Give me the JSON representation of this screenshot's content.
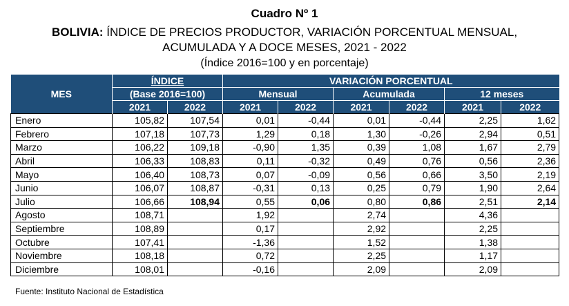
{
  "header": {
    "title": "Cuadro Nº 1",
    "subtitle_lead": "BOLIVIA:",
    "subtitle_line1": " ÍNDICE DE PRECIOS PRODUCTOR, VARIACIÓN PORCENTUAL MENSUAL,",
    "subtitle_line2": "ACUMULADA Y A DOCE MESES, 2021 - 2022",
    "base_note": "(Índice 2016=100 y en porcentaje)"
  },
  "table": {
    "col_mes": "MES",
    "group_indice": "ÍNDICE",
    "indice_base": "(Base 2016=100)",
    "group_variacion": "VARIACIÓN PORCENTUAL",
    "sub_mensual": "Mensual",
    "sub_acumulada": "Acumulada",
    "sub_doce": "12 meses",
    "years": [
      "2021",
      "2022",
      "2021",
      "2022",
      "2021",
      "2022",
      "2021",
      "2022"
    ],
    "rows": [
      [
        "Enero",
        "105,82",
        "107,54",
        "0,01",
        "-0,44",
        "0,01",
        "-0,44",
        "2,25",
        "1,62"
      ],
      [
        "Febrero",
        "107,18",
        "107,73",
        "1,29",
        "0,18",
        "1,30",
        "-0,26",
        "2,94",
        "0,51"
      ],
      [
        "Marzo",
        "106,22",
        "109,18",
        "-0,90",
        "1,35",
        "0,39",
        "1,08",
        "1,67",
        "2,79"
      ],
      [
        "Abril",
        "106,33",
        "108,83",
        "0,11",
        "-0,32",
        "0,49",
        "0,76",
        "0,56",
        "2,36"
      ],
      [
        "Mayo",
        "106,40",
        "108,73",
        "0,07",
        "-0,09",
        "0,56",
        "0,66",
        "3,50",
        "2,19"
      ],
      [
        "Junio",
        "106,07",
        "108,87",
        "-0,31",
        "0,13",
        "0,25",
        "0,79",
        "1,90",
        "2,64"
      ],
      [
        "Julio",
        "106,66",
        "108,94",
        "0,55",
        "0,06",
        "0,80",
        "0,86",
        "2,51",
        "2,14"
      ],
      [
        "Agosto",
        "108,71",
        "",
        "1,92",
        "",
        "2,74",
        "",
        "4,36",
        ""
      ],
      [
        "Septiembre",
        "108,89",
        "",
        "0,17",
        "",
        "2,92",
        "",
        "2,25",
        ""
      ],
      [
        "Octubre",
        "107,41",
        "",
        "-1,36",
        "",
        "1,52",
        "",
        "1,38",
        ""
      ],
      [
        "Noviembre",
        "108,18",
        "",
        "0,72",
        "",
        "2,25",
        "",
        "1,17",
        ""
      ],
      [
        "Diciembre",
        "108,01",
        "",
        "-0,16",
        "",
        "2,09",
        "",
        "2,09",
        ""
      ]
    ]
  },
  "footer": {
    "source": "Fuente: Instituto Nacional de Estadística"
  },
  "colors": {
    "header_bg": "#1f4e79",
    "header_text": "#ffffff"
  }
}
